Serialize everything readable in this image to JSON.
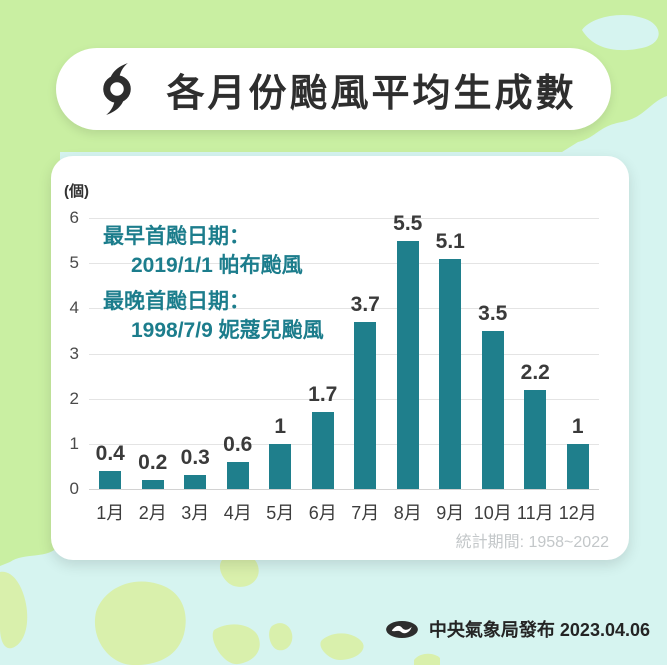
{
  "title": {
    "text": "各月份颱風平均生成數"
  },
  "chart_data": {
    "type": "bar",
    "title": "各月份颱風平均生成數",
    "categories": [
      "1月",
      "2月",
      "3月",
      "4月",
      "5月",
      "6月",
      "7月",
      "8月",
      "9月",
      "10月",
      "11月",
      "12月"
    ],
    "values": [
      0.4,
      0.2,
      0.3,
      0.6,
      1,
      1.7,
      3.7,
      5.5,
      5.1,
      3.5,
      2.2,
      1
    ],
    "value_labels": [
      "0.4",
      "0.2",
      "0.3",
      "0.6",
      "1",
      "1.7",
      "3.7",
      "5.5",
      "5.1",
      "3.5",
      "2.2",
      "1"
    ],
    "unit_label": "(個)",
    "xlabel": "",
    "ylabel": "(個)",
    "ylim": [
      0,
      6
    ],
    "yticks": [
      0,
      1,
      2,
      3,
      4,
      5,
      6
    ],
    "grid": true,
    "legend": false,
    "bar_color": "#1f7f8c"
  },
  "annotation": {
    "lines": [
      "最早首颱日期：",
      "2019/1/1 帕布颱風",
      "最晚首颱日期：",
      "1998/7/9 妮蔻兒颱風"
    ]
  },
  "stats_period": "統計期間: 1958~2022",
  "footer": {
    "publisher": "中央氣象局發布 2023.04.06"
  },
  "colors": {
    "land_green": "#c9efa2",
    "island_green": "#d9f0ac",
    "sea_cyan": "#d6f4f0",
    "bar_teal": "#1f7f8c",
    "annotation_teal": "#1c7d8c",
    "title_text": "#2e2e2e",
    "stats_gray": "#c3c7c9",
    "icon_dark": "#2d2d2d"
  }
}
